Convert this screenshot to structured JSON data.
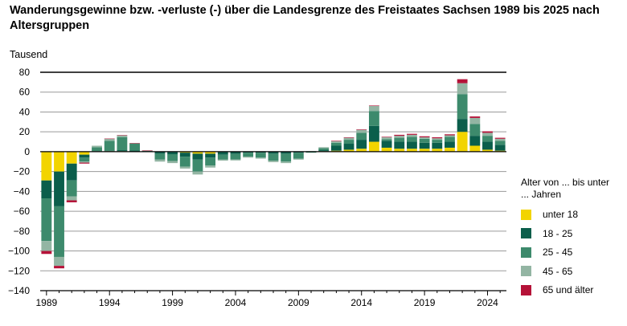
{
  "colors": {
    "under18": "#f2d400",
    "a18_25": "#0b5e4b",
    "a25_45": "#3d8a6c",
    "a45_65": "#93b5a3",
    "a65plus": "#b51238",
    "grid": "#9a9a9a",
    "axis": "#000000"
  },
  "chart_data": {
    "type": "bar",
    "stacked": true,
    "title": "Wanderungsgewinne bzw. -verluste (-) über die Landesgrenze des Freistaates Sachsen 1989 bis 2025 nach Altersgruppen",
    "ylabel": "Tausend",
    "ylim": [
      -140,
      80
    ],
    "yticks": [
      80,
      60,
      40,
      20,
      0,
      -20,
      -40,
      -60,
      -80,
      -100,
      -120,
      -140
    ],
    "grid": true,
    "legend_position": "right",
    "legend_title": "Alter von ... bis unter ... Jahren",
    "xtick_labels": [
      "1989",
      "1994",
      "1999",
      "2004",
      "2009",
      "2014",
      "2019",
      "2024"
    ],
    "categories": [
      "1989",
      "1990",
      "1991",
      "1992",
      "1993",
      "1994",
      "1995",
      "1996",
      "1997",
      "1998",
      "1999",
      "2000",
      "2001",
      "2002",
      "2003",
      "2004",
      "2005",
      "2006",
      "2007",
      "2008",
      "2009",
      "2010",
      "2011",
      "2012",
      "2013",
      "2014",
      "2015",
      "2016",
      "2017",
      "2018",
      "2019",
      "2020",
      "2021",
      "2022",
      "2023",
      "2024",
      "2025"
    ],
    "series": [
      {
        "name": "unter 18",
        "color_key": "under18",
        "values": [
          -29,
          -20,
          -12,
          -3,
          0,
          0.5,
          0.5,
          0.2,
          0,
          -0.5,
          -0.5,
          -1,
          -2,
          -2,
          -0.5,
          -0.3,
          0,
          0,
          -0.5,
          -0.5,
          0,
          0,
          0.5,
          1,
          2,
          3,
          10,
          4,
          3,
          3,
          3,
          3,
          4,
          20,
          6,
          2,
          1
        ]
      },
      {
        "name": "18 - 25",
        "color_key": "a18_25",
        "values": [
          -18,
          -35,
          -17,
          -3,
          0.5,
          0.5,
          1,
          1,
          0.3,
          -1.5,
          -2,
          -4,
          -6,
          -4,
          -2.5,
          -2,
          -1,
          -1,
          -1.5,
          -1.5,
          -1,
          0,
          1,
          5,
          6,
          9,
          16,
          7,
          7,
          7,
          6,
          6,
          6,
          13,
          10,
          8,
          6
        ]
      },
      {
        "name": "25 - 45",
        "color_key": "a25_45",
        "values": [
          -43,
          -51,
          -16,
          -4,
          4,
          10,
          13,
          7,
          0.7,
          -6,
          -7,
          -10,
          -12,
          -8,
          -5,
          -5.5,
          -4,
          -5,
          -7,
          -8,
          -6,
          -1,
          2,
          3,
          4,
          7,
          15,
          1.5,
          4,
          5,
          4,
          3,
          5,
          25,
          12,
          6,
          4
        ]
      },
      {
        "name": "45 - 65",
        "color_key": "a45_65",
        "values": [
          -10,
          -9,
          -4,
          -1,
          1.5,
          2,
          2,
          0.5,
          0.2,
          -2,
          -2,
          -2,
          -3,
          -2,
          -1,
          -1,
          -1,
          -1,
          -1.5,
          -1.5,
          -1,
          0.5,
          1,
          1.5,
          2,
          3,
          5,
          2,
          2,
          2,
          1.5,
          1.5,
          1.5,
          11,
          6,
          3,
          2
        ]
      },
      {
        "name": "65 und älter",
        "color_key": "a65plus",
        "values": [
          -3,
          -2.5,
          -2,
          -1,
          0,
          0.2,
          0.2,
          0.1,
          0.1,
          0,
          0,
          0,
          0,
          0,
          0,
          0,
          0,
          0,
          0,
          0,
          0,
          0,
          0,
          0.5,
          0.5,
          0.5,
          0.5,
          0.5,
          1,
          1,
          1,
          1,
          1,
          4,
          1.5,
          1.5,
          1
        ]
      }
    ]
  }
}
